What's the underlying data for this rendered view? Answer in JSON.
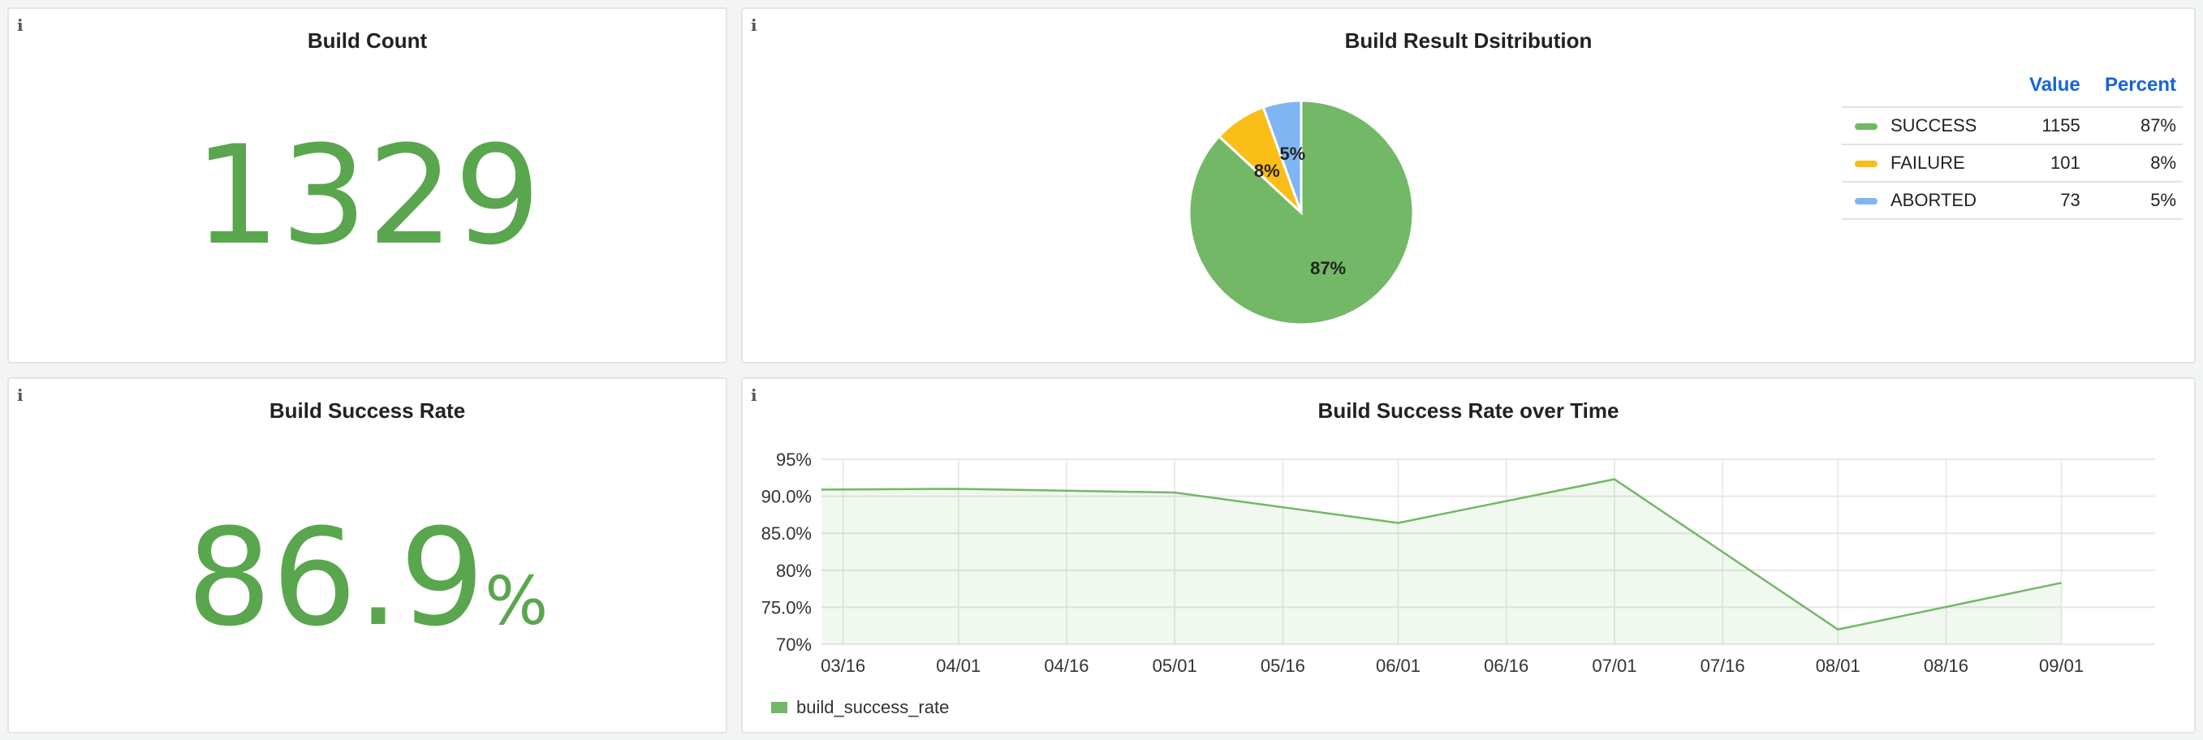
{
  "panels": {
    "build_count": {
      "title": "Build Count",
      "value": "1329",
      "info_icon": "i"
    },
    "distribution": {
      "title": "Build Result Dsitribution",
      "info_icon": "i",
      "legend_headers": {
        "value": "Value",
        "percent": "Percent"
      },
      "slices": [
        {
          "label": "SUCCESS",
          "value": 1155,
          "value_text": "1155",
          "percent": "87%",
          "color": "#72b866"
        },
        {
          "label": "FAILURE",
          "value": 101,
          "value_text": "101",
          "percent": "8%",
          "color": "#fbbd17"
        },
        {
          "label": "ABORTED",
          "value": 73,
          "value_text": "73",
          "percent": "5%",
          "color": "#7fb5f2"
        }
      ]
    },
    "success_rate": {
      "title": "Build Success Rate",
      "value": "86.9",
      "unit": "%",
      "info_icon": "i"
    },
    "rate_over_time": {
      "title": "Build Success Rate over Time",
      "info_icon": "i"
    }
  },
  "chart_data": {
    "type": "area",
    "title": "Build Success Rate over Time",
    "series": [
      {
        "name": "build_success_rate",
        "color": "#72b866",
        "x": [
          "03/13",
          "04/01",
          "05/01",
          "06/01",
          "07/01",
          "08/01",
          "09/01"
        ],
        "values": [
          90.9,
          91.0,
          90.5,
          86.4,
          92.3,
          72.0,
          78.3
        ]
      }
    ],
    "xlim": [
      "03/13",
      "09/14"
    ],
    "ylim": [
      70,
      95
    ],
    "xticks": [
      "03/16",
      "04/01",
      "04/16",
      "05/01",
      "05/16",
      "06/01",
      "06/16",
      "07/01",
      "07/16",
      "08/01",
      "08/16",
      "09/01"
    ],
    "yticks": [
      {
        "v": 95,
        "label": "95%"
      },
      {
        "v": 90,
        "label": "90.0%"
      },
      {
        "v": 85,
        "label": "85.0%"
      },
      {
        "v": 80,
        "label": "80%"
      },
      {
        "v": 75,
        "label": "75.0%"
      },
      {
        "v": 70,
        "label": "70%"
      }
    ],
    "legend": "bottom-left",
    "grid": true
  }
}
